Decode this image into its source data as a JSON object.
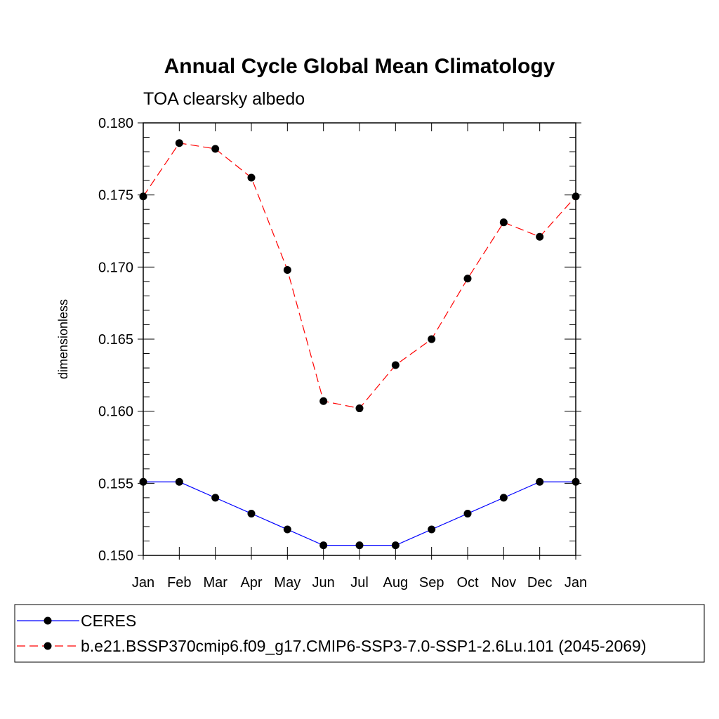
{
  "chart_data": {
    "type": "line",
    "title": "Annual Cycle Global Mean Climatology",
    "subtitle": "TOA clearsky albedo",
    "xlabel": "",
    "ylabel": "dimensionless",
    "categories": [
      "Jan",
      "Feb",
      "Mar",
      "Apr",
      "May",
      "Jun",
      "Jul",
      "Aug",
      "Sep",
      "Oct",
      "Nov",
      "Dec",
      "Jan"
    ],
    "ylim": [
      0.15,
      0.18
    ],
    "yticks": [
      "0.150",
      "0.155",
      "0.160",
      "0.165",
      "0.170",
      "0.175",
      "0.180"
    ],
    "grid": false,
    "legend_position": "bottom",
    "series": [
      {
        "name": "CERES",
        "color": "#0000ff",
        "dash": "solid",
        "marker": "filled-circle",
        "values": [
          0.1551,
          0.1551,
          0.154,
          0.1529,
          0.1518,
          0.1507,
          0.1507,
          0.1507,
          0.1518,
          0.1529,
          0.154,
          0.1551,
          0.1551
        ]
      },
      {
        "name": "b.e21.BSSP370cmip6.f09_g17.CMIP6-SSP3-7.0-SSP1-2.6Lu.101 (2045-2069)",
        "color": "#ff0000",
        "dash": "dashed",
        "marker": "filled-circle",
        "values": [
          0.1749,
          0.1786,
          0.1782,
          0.1762,
          0.1698,
          0.1607,
          0.1602,
          0.1632,
          0.165,
          0.1692,
          0.1731,
          0.1721,
          0.1749
        ]
      }
    ]
  }
}
